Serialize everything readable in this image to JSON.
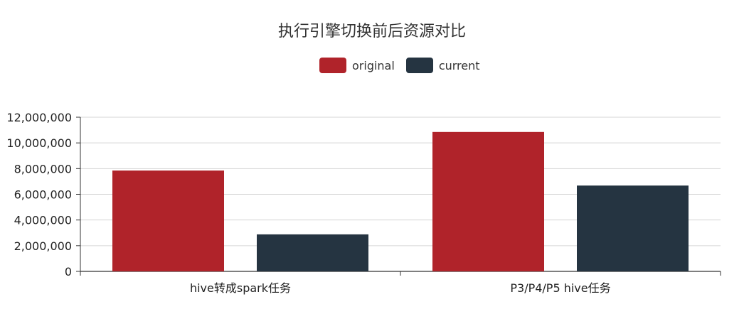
{
  "chart_data": {
    "type": "bar",
    "title": "执行引擎切换前后资源对比",
    "categories": [
      "hive转成spark任务",
      "P3/P4/P5 hive任务"
    ],
    "series": [
      {
        "name": "original",
        "color": "#b0232a",
        "values": [
          7850000,
          10850000
        ]
      },
      {
        "name": "current",
        "color": "#253441",
        "values": [
          2880000,
          6680000
        ]
      }
    ],
    "yticks": [
      "0",
      "2,000,000",
      "4,000,000",
      "6,000,000",
      "8,000,000",
      "10,000,000",
      "12,000,000"
    ],
    "ylim": [
      0,
      12000000
    ],
    "grid": true,
    "legend_position": "top-center"
  }
}
